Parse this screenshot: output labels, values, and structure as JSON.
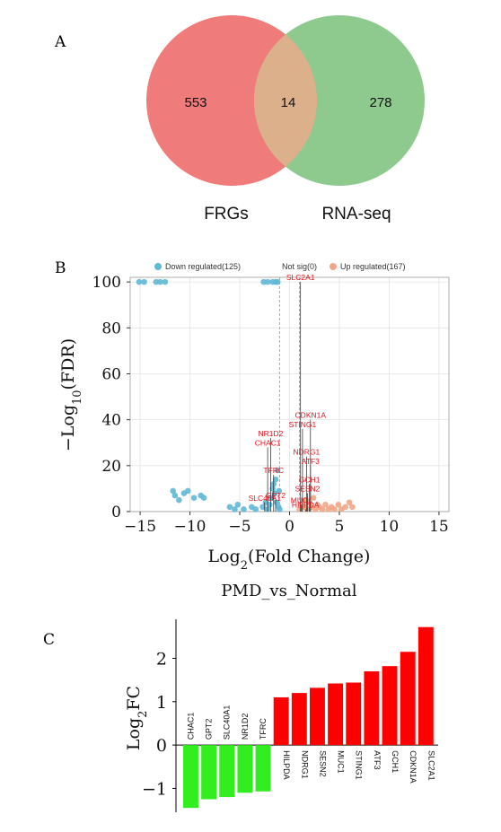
{
  "panels": {
    "a": {
      "label": "A"
    },
    "b": {
      "label": "B"
    },
    "c": {
      "label": "C"
    }
  },
  "colors": {
    "venn_left": "#f07b7b",
    "venn_right": "#8ec98e",
    "venn_overlap": "#ddb08c",
    "down": "#5fb8d6",
    "up": "#f1a686",
    "notsig": "#b0b0b0",
    "gene_label": "#e3121d",
    "bar_up": "#ff0000",
    "bar_down": "#33ee1e"
  },
  "chart_data": [
    {
      "type": "venn",
      "sets": [
        {
          "name": "FRGs",
          "only": 553
        },
        {
          "name": "RNA-seq",
          "only": 278
        }
      ],
      "overlap": 14
    },
    {
      "type": "scatter",
      "subtitle": "PMD_vs_Normal",
      "xlabel": {
        "prefix": "Log",
        "sub": "2",
        "suffix": "(Fold Change)"
      },
      "ylabel": {
        "prefix": "−Log",
        "sub": "10",
        "suffix": "(FDR)"
      },
      "xlim": [
        -16,
        16
      ],
      "ylim": [
        0,
        102
      ],
      "xticks": [
        -15,
        -10,
        -5,
        0,
        5,
        10,
        15
      ],
      "yticks": [
        0,
        20,
        40,
        60,
        80,
        100
      ],
      "grid": true,
      "legend": [
        {
          "key": "down",
          "label": "Down regulated(125)"
        },
        {
          "key": "notsig",
          "label": "Not sig(0)"
        },
        {
          "key": "up",
          "label": "Up regulated(167)"
        }
      ],
      "down_points": [
        [
          -15.1,
          100
        ],
        [
          -14.6,
          100
        ],
        [
          -13.4,
          100
        ],
        [
          -13.0,
          100
        ],
        [
          -12.5,
          100
        ],
        [
          -2.6,
          100
        ],
        [
          -2.2,
          100
        ],
        [
          -1.7,
          100
        ],
        [
          -1.4,
          100
        ],
        [
          -1.2,
          100
        ],
        [
          -11.7,
          9
        ],
        [
          -11.5,
          7
        ],
        [
          -11.1,
          5
        ],
        [
          -10.6,
          8
        ],
        [
          -10.2,
          9
        ],
        [
          -9.6,
          6
        ],
        [
          -8.9,
          7
        ],
        [
          -8.6,
          6
        ],
        [
          -6.0,
          2
        ],
        [
          -5.5,
          1
        ],
        [
          -5.2,
          3
        ],
        [
          -4.6,
          1
        ],
        [
          -3.8,
          2
        ],
        [
          -3.4,
          1
        ],
        [
          -2.7,
          2
        ],
        [
          -2.4,
          4
        ],
        [
          -2.2,
          1
        ],
        [
          -2.0,
          3
        ],
        [
          -1.8,
          6
        ],
        [
          -1.7,
          10
        ],
        [
          -1.6,
          12
        ],
        [
          -1.5,
          8
        ],
        [
          -1.4,
          14
        ],
        [
          -1.3,
          4
        ],
        [
          -1.2,
          18
        ],
        [
          -1.1,
          2
        ],
        [
          -1.05,
          9
        ],
        [
          -1.0,
          1
        ]
      ],
      "up_points": [
        [
          1.0,
          1
        ],
        [
          1.2,
          3
        ],
        [
          1.4,
          2
        ],
        [
          1.6,
          5
        ],
        [
          1.8,
          1
        ],
        [
          2.0,
          4
        ],
        [
          2.2,
          2
        ],
        [
          2.4,
          6
        ],
        [
          2.6,
          1
        ],
        [
          2.8,
          3
        ],
        [
          3.0,
          2
        ],
        [
          3.3,
          1
        ],
        [
          3.6,
          3
        ],
        [
          3.9,
          1
        ],
        [
          4.2,
          2
        ],
        [
          4.5,
          1
        ],
        [
          4.9,
          3
        ],
        [
          5.2,
          1
        ],
        [
          5.6,
          2
        ],
        [
          6.0,
          4
        ],
        [
          6.3,
          2
        ]
      ],
      "labeled_genes": [
        {
          "name": "SLC2A1",
          "x": 1.1,
          "y": 100
        },
        {
          "name": "CDKN1A",
          "x": 2.1,
          "y": 40
        },
        {
          "name": "STING1",
          "x": 1.3,
          "y": 36
        },
        {
          "name": "NR1D2",
          "x": -1.9,
          "y": 32
        },
        {
          "name": "CHAC1",
          "x": -2.2,
          "y": 28
        },
        {
          "name": "NDRG1",
          "x": 1.7,
          "y": 24
        },
        {
          "name": "ATF3",
          "x": 2.1,
          "y": 20
        },
        {
          "name": "TFRC",
          "x": -1.6,
          "y": 16
        },
        {
          "name": "GCH1",
          "x": 2.0,
          "y": 12
        },
        {
          "name": "SESN2",
          "x": 1.8,
          "y": 8
        },
        {
          "name": "SLC40A1",
          "x": -2.5,
          "y": 4
        },
        {
          "name": "GPT2",
          "x": -1.4,
          "y": 5
        },
        {
          "name": "MUC1",
          "x": 1.2,
          "y": 3
        },
        {
          "name": "HILPDA",
          "x": 1.6,
          "y": 1
        }
      ]
    },
    {
      "type": "bar",
      "ylabel": {
        "prefix": "Log",
        "sub": "2",
        "suffix": "FC"
      },
      "ylim": [
        -1.55,
        2.9
      ],
      "yticks": [
        -1,
        0,
        1,
        2
      ],
      "categories": [
        "CHAC1",
        "GPT2",
        "SLC40A1",
        "NR1D2",
        "TFRC",
        "HILPDA",
        "NDRG1",
        "SESN2",
        "MUC1",
        "STING1",
        "ATF3",
        "GCH1",
        "CDKN1A",
        "SLC2A1"
      ],
      "values": [
        -1.45,
        -1.25,
        -1.2,
        -1.1,
        -1.07,
        1.1,
        1.2,
        1.32,
        1.42,
        1.44,
        1.7,
        1.82,
        2.15,
        2.72
      ]
    }
  ]
}
